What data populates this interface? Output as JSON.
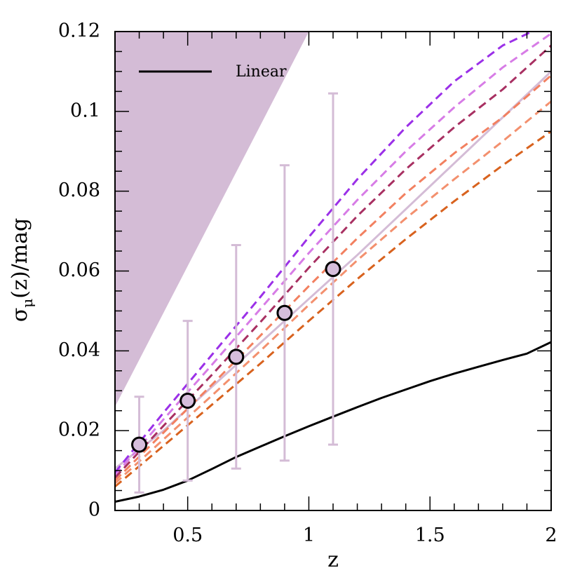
{
  "chart_data": {
    "type": "line",
    "xlabel": "z",
    "ylabel_main": "σ",
    "ylabel_sub": "μ",
    "ylabel_rest": "(z)/mag",
    "xlim": [
      0.2,
      2.0
    ],
    "ylim": [
      0.0,
      0.12
    ],
    "xticks": [
      0.5,
      1,
      1.5,
      2
    ],
    "xtick_labels": [
      "0.5",
      "1",
      "1.5",
      "2"
    ],
    "yticks": [
      0,
      0.02,
      0.04,
      0.06,
      0.08,
      0.1,
      0.12
    ],
    "ytick_labels": [
      "0",
      "0.02",
      "0.04",
      "0.06",
      "0.08",
      "0.1",
      "0.12"
    ],
    "legend": {
      "label": "Linear",
      "color": "#000000",
      "placement": "top-left"
    },
    "shaded_region": {
      "color": "#d4bcd6",
      "boundary": [
        [
          0.2,
          0.026
        ],
        [
          1.0,
          0.12
        ]
      ],
      "note_side": "above"
    },
    "series": [
      {
        "name": "Linear",
        "style": "solid",
        "color": "#000000",
        "x": [
          0.2,
          0.3,
          0.4,
          0.5,
          0.6,
          0.7,
          0.8,
          0.9,
          1.0,
          1.1,
          1.2,
          1.3,
          1.4,
          1.5,
          1.6,
          1.7,
          1.8,
          1.9,
          2.0
        ],
        "y": [
          0.0022,
          0.0035,
          0.0052,
          0.0075,
          0.0104,
          0.0134,
          0.016,
          0.0186,
          0.0211,
          0.0235,
          0.0259,
          0.0282,
          0.0303,
          0.0324,
          0.0343,
          0.036,
          0.0377,
          0.0393,
          0.0422
        ]
      },
      {
        "style": "solid",
        "color": "#d4bcd6",
        "x": [
          0.2,
          0.4,
          0.6,
          0.8,
          1.0,
          1.2,
          1.4,
          1.6,
          1.8,
          2.0
        ],
        "y": [
          0.0105,
          0.02,
          0.031,
          0.042,
          0.053,
          0.064,
          0.0755,
          0.087,
          0.0985,
          0.11
        ]
      },
      {
        "style": "dashed",
        "color": "#9b30e8",
        "x": [
          0.2,
          0.4,
          0.6,
          0.8,
          1.0,
          1.2,
          1.4,
          1.6,
          1.8,
          1.92
        ],
        "y": [
          0.0095,
          0.0245,
          0.039,
          0.0535,
          0.0685,
          0.083,
          0.096,
          0.1075,
          0.1165,
          0.12
        ]
      },
      {
        "style": "dashed",
        "color": "#d77ce6",
        "x": [
          0.2,
          0.4,
          0.6,
          0.8,
          1.0,
          1.2,
          1.4,
          1.6,
          1.8,
          2.0
        ],
        "y": [
          0.0088,
          0.0228,
          0.0365,
          0.0505,
          0.0645,
          0.0778,
          0.09,
          0.101,
          0.111,
          0.1195
        ]
      },
      {
        "style": "dashed",
        "color": "#a83062",
        "x": [
          0.2,
          0.4,
          0.6,
          0.8,
          1.0,
          1.2,
          1.4,
          1.6,
          1.8,
          2.0
        ],
        "y": [
          0.0082,
          0.0212,
          0.034,
          0.0472,
          0.0608,
          0.0738,
          0.0855,
          0.096,
          0.1055,
          0.1165
        ]
      },
      {
        "style": "dashed",
        "color": "#f28060",
        "x": [
          0.2,
          0.4,
          0.6,
          0.8,
          1.0,
          1.2,
          1.4,
          1.6,
          1.8,
          2.0
        ],
        "y": [
          0.0075,
          0.0195,
          0.0315,
          0.0438,
          0.0562,
          0.0682,
          0.0795,
          0.0895,
          0.0985,
          0.109
        ]
      },
      {
        "style": "dashed",
        "color": "#f3906e",
        "x": [
          0.2,
          0.4,
          0.6,
          0.8,
          1.0,
          1.2,
          1.4,
          1.6,
          1.8,
          2.0
        ],
        "y": [
          0.0068,
          0.0178,
          0.0288,
          0.04,
          0.0515,
          0.0627,
          0.0732,
          0.083,
          0.0925,
          0.1025
        ]
      },
      {
        "style": "dashed",
        "color": "#d8621e",
        "x": [
          0.2,
          0.4,
          0.6,
          0.8,
          1.0,
          1.2,
          1.4,
          1.6,
          1.8,
          2.0
        ],
        "y": [
          0.006,
          0.0162,
          0.0265,
          0.0368,
          0.0475,
          0.058,
          0.068,
          0.0775,
          0.0865,
          0.095
        ]
      }
    ],
    "points": {
      "color": "#d6bedc",
      "errorbar_color": "#d4bcd6",
      "x": [
        0.3,
        0.5,
        0.7,
        0.9,
        1.1
      ],
      "y": [
        0.0165,
        0.0275,
        0.0385,
        0.0495,
        0.0605
      ],
      "err_low": [
        0.0045,
        0.0075,
        0.0105,
        0.0125,
        0.0165
      ],
      "err_high": [
        0.0285,
        0.0475,
        0.0665,
        0.0865,
        0.1045
      ]
    }
  }
}
